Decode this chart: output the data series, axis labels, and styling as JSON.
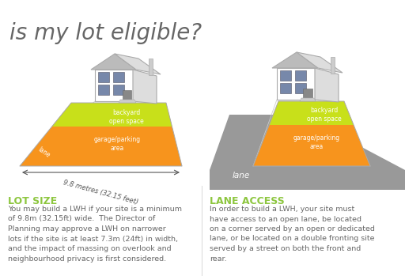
{
  "title": "is my lot eligible?",
  "title_color": "#666666",
  "title_fontsize": 20,
  "background_color": "#ffffff",
  "lot_size_heading": "LOT SIZE",
  "lot_size_heading_color": "#8dc63f",
  "lot_size_text": "You may build a LWH if your site is a minimum\nof 9.8m (32.15ft) wide.  The Director of\nPlanning may approve a LWH on narrower\nlots if the site is at least 7.3m (24ft) in width,\nand the impact of massing on overlook and\nneighbourhood privacy is first considered.",
  "lane_access_heading": "LANE ACCESS",
  "lane_access_heading_color": "#8dc63f",
  "lane_access_text": "In order to build a LWH, your site must\nhave access to an open lane, be located\non a corner served by an open or dedicated\nlane, or be located on a double fronting site\nserved by a street on both the front and\nrear.",
  "text_color": "#666666",
  "text_fontsize": 6.8,
  "heading_fontsize": 9,
  "measurement_text": "9.8 metres (32.15 feet)",
  "lane_label": "lane",
  "orange_color": "#f7941d",
  "green_color": "#c8e01a",
  "gray_color": "#999999",
  "white_color": "#ffffff",
  "light_gray": "#cccccc",
  "dark_gray": "#888888"
}
